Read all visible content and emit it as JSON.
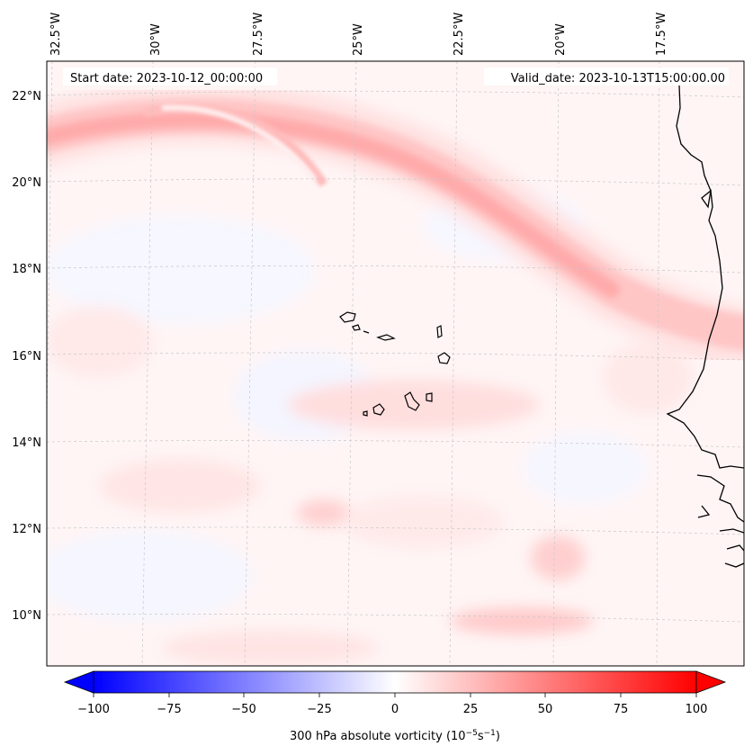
{
  "map": {
    "start_label": "Start date: 2023-10-12_00:00:00",
    "valid_label": "Valid_date: 2023-10-13T15:00:00.00",
    "lon_labels": [
      "32.5°W",
      "30°W",
      "27.5°W",
      "25°W",
      "22.5°W",
      "20°W",
      "17.5°W"
    ],
    "lat_labels": [
      "22°N",
      "20°N",
      "18°N",
      "16°N",
      "14°N",
      "12°N",
      "10°N"
    ]
  },
  "colorbar": {
    "ticks": [
      "−100",
      "−75",
      "−50",
      "−25",
      "0",
      "25",
      "50",
      "75",
      "100"
    ],
    "label_prefix": "300 hPa absolute vorticity (10",
    "label_exp1": "−5",
    "label_mid": "s",
    "label_exp2": "−1",
    "label_suffix": ")",
    "min_color": "#0000ff",
    "mid_color": "#ffffff",
    "max_color": "#ff0000"
  },
  "colors": {
    "coast": "#000000",
    "grid": "#c8c8c8",
    "background_field": "#fff4f4"
  }
}
